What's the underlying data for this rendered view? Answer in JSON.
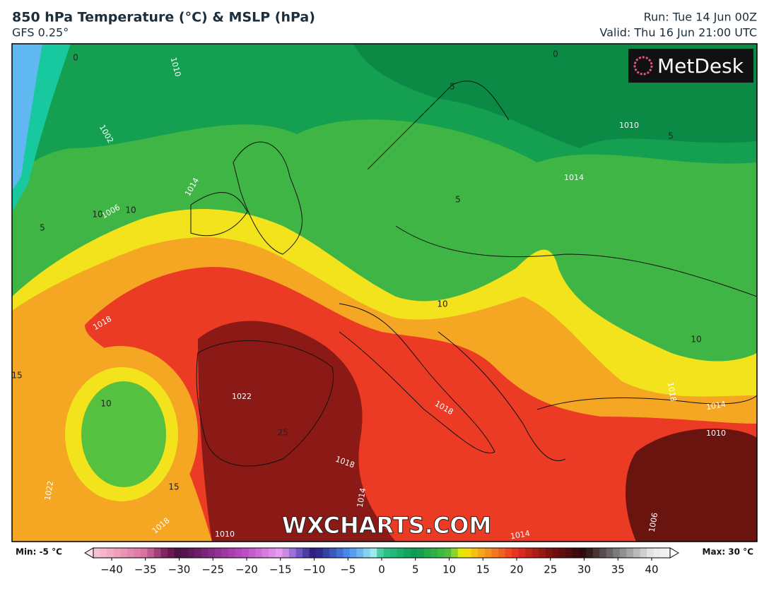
{
  "header": {
    "title": "850 hPa Temperature (°C) & MSLP (hPa)",
    "subtitle": "GFS 0.25°",
    "run": "Run: Tue 14 Jun 00Z",
    "valid": "Valid: Thu 16 Jun 21:00 UTC"
  },
  "map": {
    "logo": "MetDesk",
    "watermark": "WXCHARTS.COM",
    "isobar_labels": [
      "1010",
      "1002",
      "1014",
      "1006",
      "1018",
      "1022",
      "1018",
      "1018",
      "1014",
      "1010",
      "1010",
      "1014",
      "1010",
      "1014",
      "1006",
      "1022",
      "1018",
      "1018",
      "1014"
    ],
    "temperature_labels": [
      "0",
      "0",
      "5",
      "5",
      "5",
      "10",
      "10",
      "5",
      "10",
      "10",
      "15",
      "10",
      "15",
      "25"
    ]
  },
  "colorbar": {
    "min_label": "Min: -5 °C",
    "max_label": "Max: 30 °C",
    "range": [
      -40,
      40
    ],
    "ticks": [
      {
        "value": -40,
        "label": "−40"
      },
      {
        "value": -35,
        "label": "−35"
      },
      {
        "value": -30,
        "label": "−30"
      },
      {
        "value": -25,
        "label": "−25"
      },
      {
        "value": -20,
        "label": "−20"
      },
      {
        "value": -15,
        "label": "−15"
      },
      {
        "value": -10,
        "label": "−10"
      },
      {
        "value": -5,
        "label": "−5"
      },
      0,
      5,
      10,
      15,
      20,
      25,
      30,
      35,
      40
    ]
  }
}
